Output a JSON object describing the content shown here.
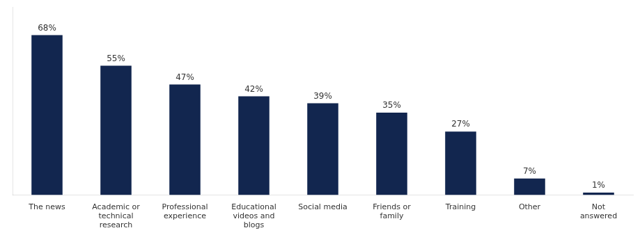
{
  "chart_data": {
    "type": "bar",
    "categories": [
      "The news",
      "Academic or\ntechnical\nresearch",
      "Professional\nexperience",
      "Educational\nvideos and\nblogs",
      "Social media",
      "Friends or\nfamily",
      "Training",
      "Other",
      "Not\nanswered"
    ],
    "values": [
      68,
      55,
      47,
      42,
      39,
      35,
      27,
      7,
      1
    ],
    "value_labels": [
      "68%",
      "55%",
      "47%",
      "42%",
      "39%",
      "35%",
      "27%",
      "7%",
      "1%"
    ],
    "data_labels": true,
    "color": "#12264F",
    "ylim": [
      0,
      80
    ],
    "grid": false,
    "tick_labels": "x"
  }
}
